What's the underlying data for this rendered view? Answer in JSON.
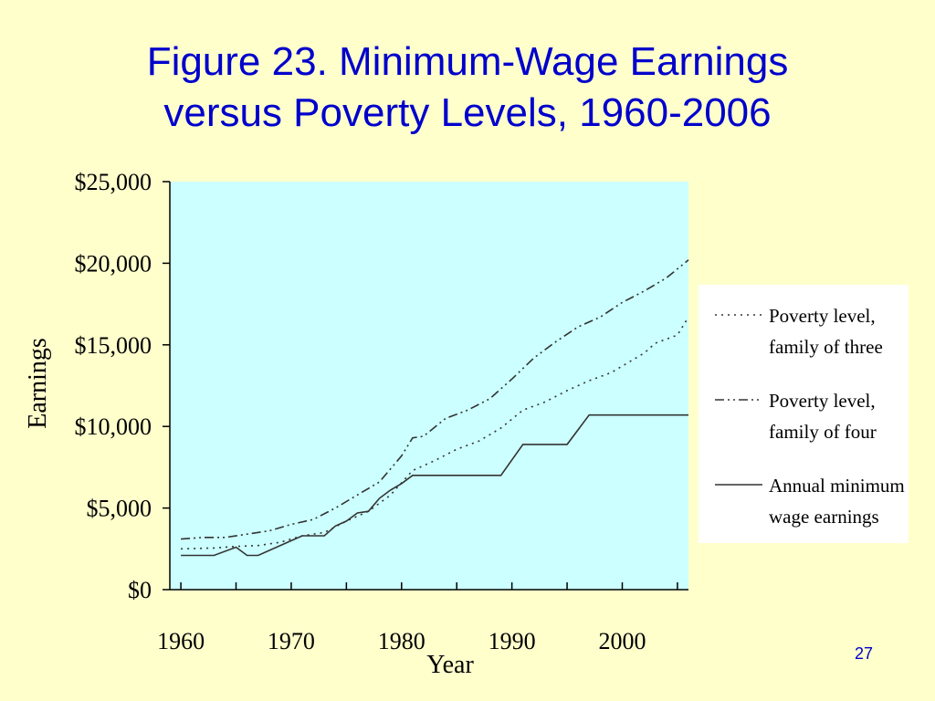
{
  "slide": {
    "title_line1": "Figure 23.  Minimum-Wage Earnings",
    "title_line2": "versus Poverty Levels, 1960-2006",
    "page_number": "27"
  },
  "colors": {
    "background": "#ffffcc",
    "title": "#0000cc",
    "plot_area": "#ccffff",
    "legend_box": "#ffffff",
    "lines": "#333333"
  },
  "chart_data": {
    "type": "line",
    "title": "",
    "xlabel": "Year",
    "ylabel": "Earnings",
    "xlim": [
      1959,
      2006
    ],
    "ylim": [
      0,
      25000
    ],
    "x_ticks": [
      1960,
      1970,
      1980,
      1990,
      2000
    ],
    "x_tick_labels": [
      "1960",
      "1970",
      "1980",
      "1990",
      "2000"
    ],
    "y_ticks": [
      0,
      5000,
      10000,
      15000,
      20000,
      25000
    ],
    "y_tick_labels": [
      "$0",
      "$5,000",
      "$10,000",
      "$15,000",
      "$20,000",
      "$25,000"
    ],
    "grid": false,
    "legend_position": "right",
    "series": [
      {
        "name_line1": "Poverty level,",
        "name_line2": "family of three",
        "style": "dotted",
        "points": [
          [
            1960,
            2500
          ],
          [
            1963,
            2550
          ],
          [
            1965,
            2650
          ],
          [
            1967,
            2700
          ],
          [
            1969,
            2900
          ],
          [
            1971,
            3300
          ],
          [
            1973,
            3500
          ],
          [
            1975,
            4200
          ],
          [
            1977,
            4800
          ],
          [
            1979,
            5800
          ],
          [
            1981,
            7300
          ],
          [
            1983,
            7900
          ],
          [
            1985,
            8600
          ],
          [
            1987,
            9100
          ],
          [
            1989,
            9900
          ],
          [
            1991,
            11000
          ],
          [
            1993,
            11500
          ],
          [
            1995,
            12200
          ],
          [
            1997,
            12800
          ],
          [
            1999,
            13300
          ],
          [
            2001,
            14100
          ],
          [
            2002,
            14500
          ],
          [
            2003,
            15100
          ],
          [
            2005,
            15600
          ],
          [
            2006,
            16700
          ]
        ]
      },
      {
        "name_line1": "Poverty level,",
        "name_line2": "family of four",
        "style": "dash-dot-dot",
        "points": [
          [
            1960,
            3100
          ],
          [
            1962,
            3200
          ],
          [
            1964,
            3200
          ],
          [
            1966,
            3400
          ],
          [
            1968,
            3600
          ],
          [
            1970,
            4000
          ],
          [
            1972,
            4300
          ],
          [
            1974,
            5000
          ],
          [
            1976,
            5800
          ],
          [
            1978,
            6600
          ],
          [
            1980,
            8200
          ],
          [
            1981,
            9300
          ],
          [
            1982,
            9400
          ],
          [
            1984,
            10500
          ],
          [
            1986,
            11000
          ],
          [
            1988,
            11700
          ],
          [
            1990,
            12900
          ],
          [
            1992,
            14200
          ],
          [
            1994,
            15200
          ],
          [
            1996,
            16100
          ],
          [
            1998,
            16700
          ],
          [
            2000,
            17600
          ],
          [
            2002,
            18300
          ],
          [
            2004,
            19100
          ],
          [
            2006,
            20200
          ]
        ]
      },
      {
        "name_line1": "Annual minimum",
        "name_line2": "wage earnings",
        "style": "solid",
        "points": [
          [
            1960,
            2100
          ],
          [
            1963,
            2100
          ],
          [
            1965,
            2600
          ],
          [
            1966,
            2100
          ],
          [
            1967,
            2100
          ],
          [
            1970,
            3000
          ],
          [
            1971,
            3300
          ],
          [
            1973,
            3300
          ],
          [
            1974,
            3900
          ],
          [
            1975,
            4200
          ],
          [
            1976,
            4700
          ],
          [
            1977,
            4800
          ],
          [
            1978,
            5600
          ],
          [
            1979,
            6100
          ],
          [
            1980,
            6500
          ],
          [
            1981,
            7000
          ],
          [
            1989,
            7000
          ],
          [
            1991,
            8900
          ],
          [
            1995,
            8900
          ],
          [
            1997,
            10700
          ],
          [
            2006,
            10700
          ]
        ]
      }
    ]
  }
}
